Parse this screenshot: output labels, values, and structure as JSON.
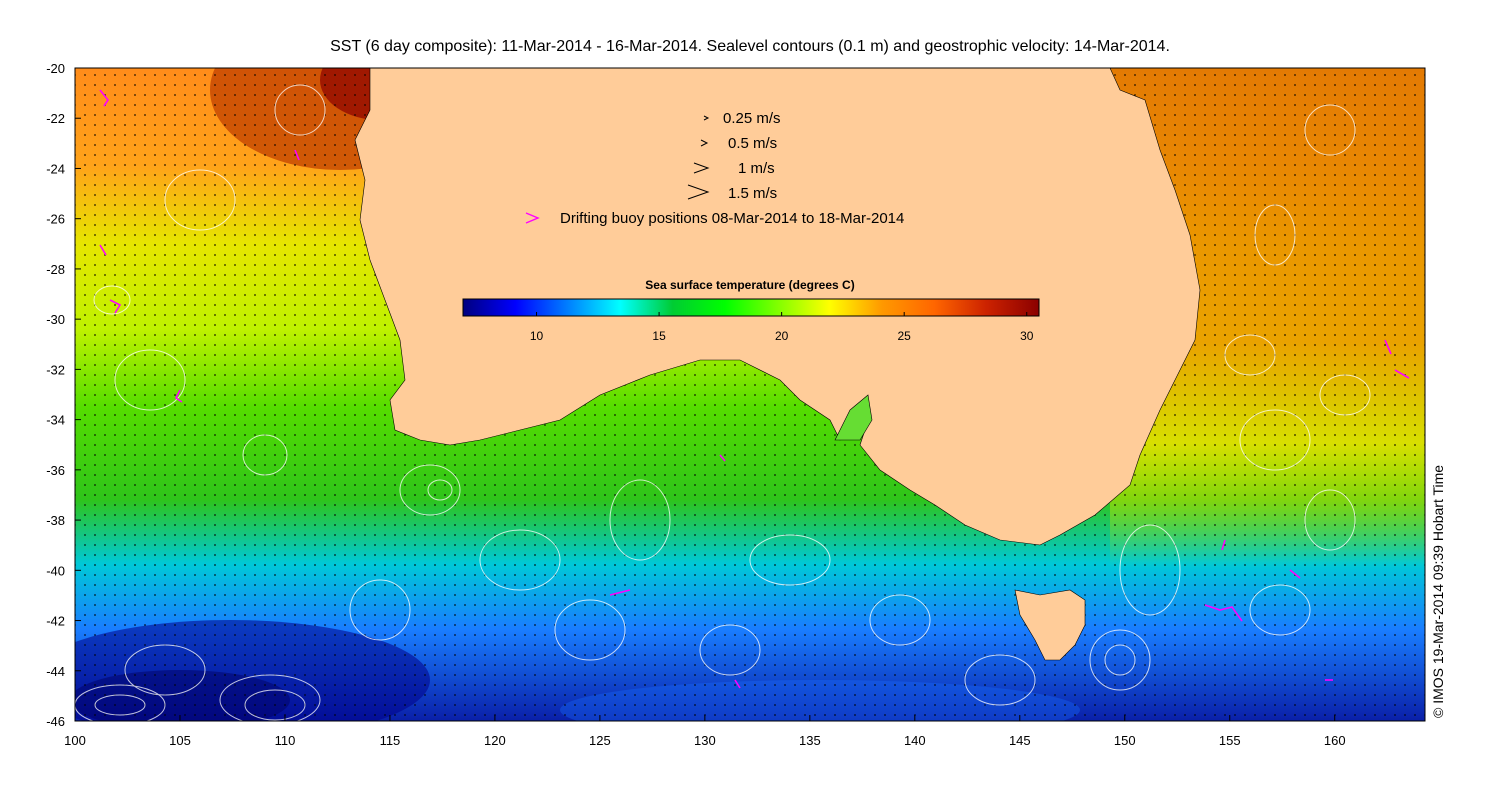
{
  "title": "SST (6 day composite): 11-Mar-2014 - 16-Mar-2014. Sealevel contours (0.1 m) and geostrophic velocity: 14-Mar-2014.",
  "credit": "© IMOS 19-Mar-2014 09:39 Hobart Time",
  "map": {
    "lon_range": [
      100,
      164.3
    ],
    "lat_range": [
      -46,
      -20
    ],
    "x_ticks": [
      "100",
      "105",
      "110",
      "115",
      "120",
      "125",
      "130",
      "135",
      "140",
      "145",
      "150",
      "155",
      "160"
    ],
    "y_ticks": [
      "-20",
      "-22",
      "-24",
      "-26",
      "-28",
      "-30",
      "-32",
      "-34",
      "-36",
      "-38",
      "-40",
      "-42",
      "-44",
      "-46"
    ],
    "land_color": "#ffcc99",
    "contour_color": "#ffffff",
    "arrow_color": "#000000",
    "buoy_color": "#ff00ff"
  },
  "legend": {
    "items": [
      {
        "label": "0.25 m/s",
        "speed": 0.25
      },
      {
        "label": "0.5 m/s",
        "speed": 0.5
      },
      {
        "label": "1 m/s",
        "speed": 1
      },
      {
        "label": "1.5 m/s",
        "speed": 1.5
      }
    ],
    "buoy_label": "Drifting buoy positions 08-Mar-2014 to 18-Mar-2014"
  },
  "colorbar": {
    "title": "Sea surface temperature (degrees C)",
    "range": [
      7,
      30.5
    ],
    "ticks": [
      "10",
      "15",
      "20",
      "25",
      "30"
    ],
    "colors": [
      "#00007f",
      "#0000ff",
      "#007fff",
      "#00ffff",
      "#00cc33",
      "#00ff00",
      "#7fff00",
      "#ffff00",
      "#ff9900",
      "#ff6600",
      "#cc2200",
      "#8b0000"
    ]
  }
}
